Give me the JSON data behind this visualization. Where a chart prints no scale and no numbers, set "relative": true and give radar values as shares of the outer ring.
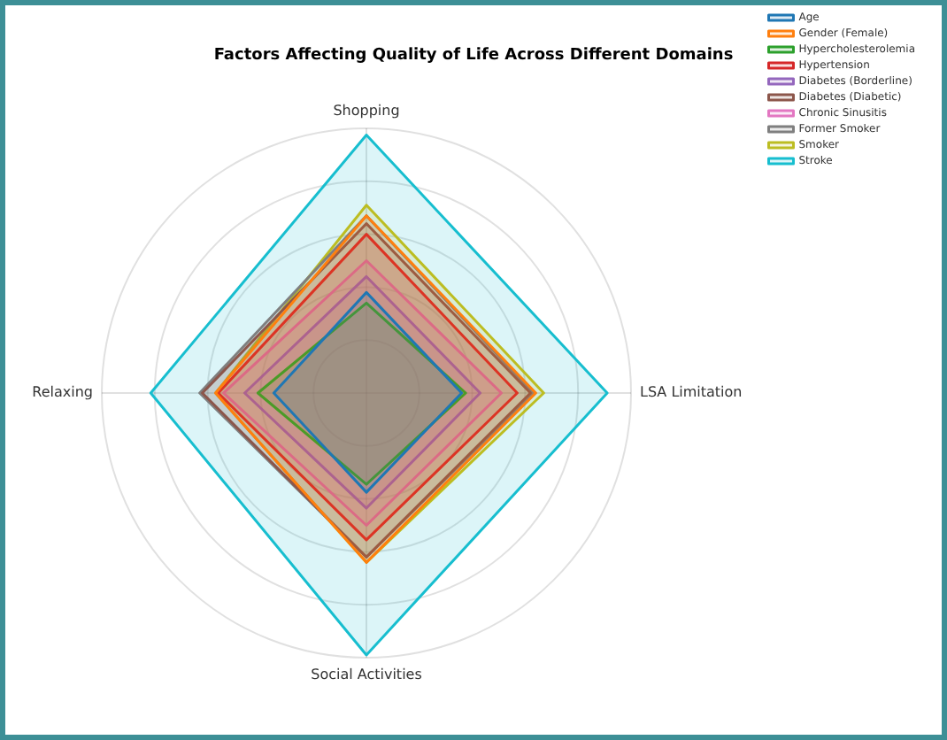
{
  "chart_data": {
    "type": "radar",
    "title": "Factors Affecting Quality of Life Across Different Domains",
    "categories": [
      "Shopping",
      "LSA Limitation",
      "Social Activities",
      "Relaxing"
    ],
    "relative": true,
    "grid": true,
    "legend": "top right",
    "series": [
      {
        "name": "Age",
        "color": "#1f77b4",
        "values": [
          0.38,
          0.36,
          0.375,
          0.35
        ]
      },
      {
        "name": "Gender (Female)",
        "color": "#ff7f0e",
        "values": [
          0.67,
          0.64,
          0.64,
          0.57
        ]
      },
      {
        "name": "Hypercholesterolemia",
        "color": "#2ca02c",
        "values": [
          0.34,
          0.375,
          0.345,
          0.41
        ]
      },
      {
        "name": "Hypertension",
        "color": "#d62728",
        "values": [
          0.6,
          0.57,
          0.555,
          0.56
        ]
      },
      {
        "name": "Diabetes (Borderline)",
        "color": "#9467bd",
        "values": [
          0.44,
          0.43,
          0.435,
          0.46
        ]
      },
      {
        "name": "Diabetes (Diabetic)",
        "color": "#8c564b",
        "values": [
          0.64,
          0.62,
          0.62,
          0.62
        ]
      },
      {
        "name": "Chronic Sinusitis",
        "color": "#e377c2",
        "values": [
          0.5,
          0.51,
          0.5,
          0.54
        ]
      },
      {
        "name": "Former Smoker",
        "color": "#7f7f7f",
        "values": [
          0.67,
          0.63,
          0.62,
          0.63
        ]
      },
      {
        "name": "Smoker",
        "color": "#bcbd22",
        "values": [
          0.71,
          0.67,
          0.64,
          0.57
        ]
      },
      {
        "name": "Stroke",
        "color": "#17becf",
        "values": [
          0.975,
          0.91,
          0.99,
          0.815
        ]
      }
    ]
  }
}
